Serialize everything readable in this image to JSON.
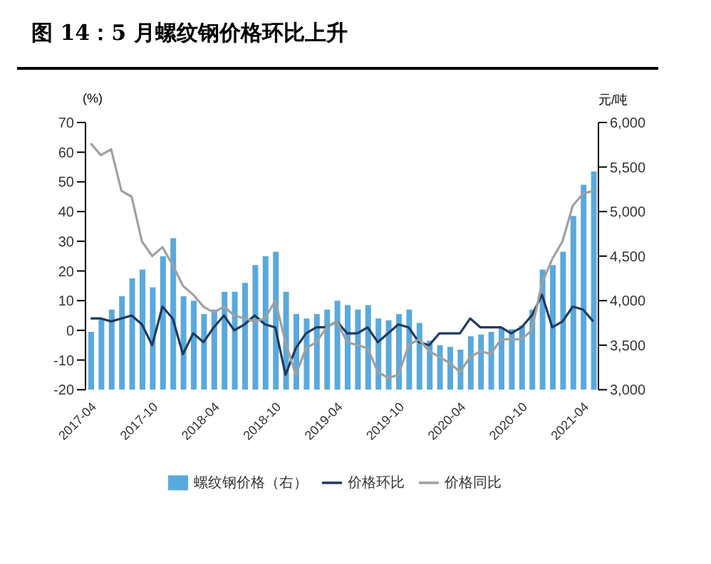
{
  "chart_data": {
    "type": "bar",
    "title": "图 14：5 月螺纹钢价格环比上升",
    "ylabel": "(%)",
    "y2label": "元/吨",
    "categories": [
      "2017-04",
      null,
      null,
      null,
      null,
      null,
      "2017-10",
      null,
      null,
      null,
      null,
      null,
      "2018-04",
      null,
      null,
      null,
      null,
      null,
      "2018-10",
      null,
      null,
      null,
      null,
      null,
      "2019-04",
      null,
      null,
      null,
      null,
      null,
      "2019-10",
      null,
      null,
      null,
      null,
      null,
      "2020-04",
      null,
      null,
      null,
      null,
      null,
      "2020-10",
      null,
      null,
      null,
      null,
      null,
      "2021-04",
      null
    ],
    "series": [
      {
        "name": "螺纹钢价格（右）",
        "axis": "y2",
        "color": "#5aa9dc",
        "values": [
          3650,
          3800,
          3900,
          4050,
          4250,
          4350,
          4150,
          4500,
          4700,
          4050,
          4000,
          3850,
          3900,
          4100,
          4100,
          4200,
          4400,
          4500,
          4550,
          4100,
          3850,
          3800,
          3850,
          3900,
          4000,
          3950,
          3900,
          3950,
          3800,
          3780,
          3850,
          3900,
          3750,
          3550,
          3500,
          3480,
          3450,
          3600,
          3620,
          3650,
          3700,
          3680,
          3720,
          3900,
          4350,
          4400,
          4550,
          4950,
          5300,
          5450
        ]
      },
      {
        "name": "价格环比",
        "type": "line",
        "color": "#1f3a5f",
        "values": [
          4,
          4,
          3,
          4,
          5,
          2,
          -5,
          8,
          4,
          -8,
          -1,
          -4,
          1,
          5,
          0,
          2,
          5,
          2,
          1,
          -15,
          -6,
          -1,
          1,
          1,
          3,
          -1,
          -1,
          1,
          -4,
          -1,
          2,
          1,
          -4,
          -5,
          -1,
          -1,
          -1,
          4,
          1,
          1,
          1,
          -1,
          1,
          5,
          12,
          1,
          3,
          8,
          7,
          3
        ]
      },
      {
        "name": "价格同比",
        "type": "line",
        "color": "#a0a0a0",
        "values": [
          63,
          59,
          61,
          47,
          45,
          30,
          25,
          28,
          22,
          15,
          12,
          8,
          6,
          8,
          5,
          4,
          3,
          4,
          10,
          -4,
          -15,
          -6,
          -4,
          1,
          3,
          -4,
          -5,
          -6,
          -14,
          -16,
          -15,
          -5,
          -3,
          -7,
          -9,
          -11,
          -14,
          -9,
          -7,
          -8,
          -3,
          -3,
          -3,
          0,
          16,
          24,
          30,
          42,
          46,
          47
        ]
      }
    ],
    "ylim": [
      -20,
      70
    ],
    "yticks": [
      -20,
      -10,
      0,
      10,
      20,
      30,
      40,
      50,
      60,
      70
    ],
    "y2lim": [
      3000,
      6000
    ],
    "y2ticks": [
      {
        "value": 3000,
        "label": "3,000"
      },
      {
        "value": 3500,
        "label": "3,500"
      },
      {
        "value": 4000,
        "label": "4,000"
      },
      {
        "value": 4500,
        "label": "4,500"
      },
      {
        "value": 5000,
        "label": "5,000"
      },
      {
        "value": 5500,
        "label": "5,500"
      },
      {
        "value": 6000,
        "label": "6,000"
      }
    ],
    "grid": false,
    "legend": "bottom",
    "marker": "none",
    "line_style": "solid"
  }
}
